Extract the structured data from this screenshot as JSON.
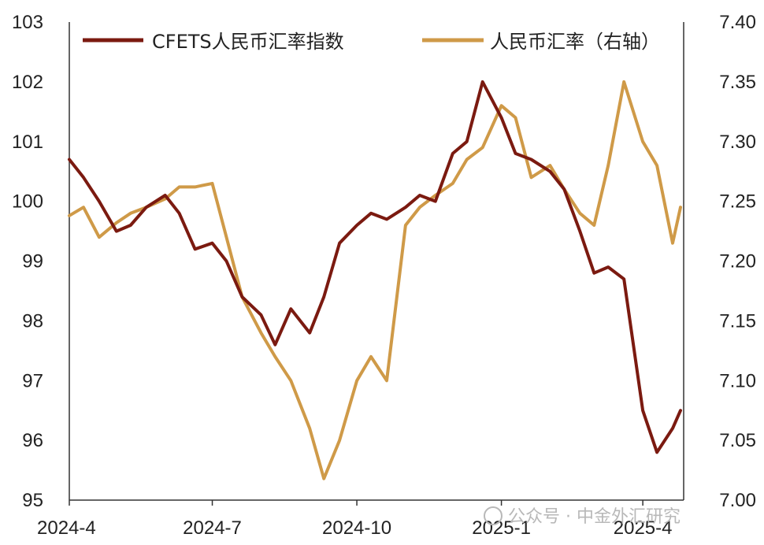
{
  "chart_data": {
    "type": "line",
    "x_ticks": [
      "2024-4",
      "2024-7",
      "2024-10",
      "2025-1",
      "2025-4"
    ],
    "y_left": {
      "ylim": [
        95,
        103
      ],
      "ticks": [
        "95",
        "96",
        "97",
        "98",
        "99",
        "100",
        "101",
        "102",
        "103"
      ]
    },
    "y_right": {
      "ylim": [
        7.0,
        7.4
      ],
      "ticks": [
        "7.00",
        "7.05",
        "7.10",
        "7.15",
        "7.20",
        "7.25",
        "7.30",
        "7.35",
        "7.40"
      ]
    },
    "legend_position": "top",
    "grid": false,
    "series": [
      {
        "name": "CFETS人民币汇率指数",
        "axis": "left",
        "color": "#7b1a10",
        "x": [
          "2024-04-01",
          "2024-04-10",
          "2024-04-20",
          "2024-05-01",
          "2024-05-10",
          "2024-05-20",
          "2024-06-01",
          "2024-06-10",
          "2024-06-20",
          "2024-07-01",
          "2024-07-10",
          "2024-07-20",
          "2024-08-01",
          "2024-08-10",
          "2024-08-20",
          "2024-09-01",
          "2024-09-10",
          "2024-09-20",
          "2024-10-01",
          "2024-10-10",
          "2024-10-20",
          "2024-11-01",
          "2024-11-10",
          "2024-11-20",
          "2024-12-01",
          "2024-12-10",
          "2024-12-20",
          "2025-01-01",
          "2025-01-10",
          "2025-01-20",
          "2025-02-01",
          "2025-02-10",
          "2025-02-20",
          "2025-03-01",
          "2025-03-10",
          "2025-03-20",
          "2025-04-01",
          "2025-04-10",
          "2025-04-20",
          "2025-04-25"
        ],
        "values": [
          100.7,
          100.4,
          100.0,
          99.5,
          99.6,
          99.9,
          100.1,
          99.8,
          99.2,
          99.3,
          99.0,
          98.4,
          98.1,
          97.6,
          98.2,
          97.8,
          98.4,
          99.3,
          99.6,
          99.8,
          99.7,
          99.9,
          100.1,
          100.0,
          100.8,
          101.0,
          102.0,
          101.4,
          100.8,
          100.7,
          100.5,
          100.2,
          99.5,
          98.8,
          98.9,
          98.7,
          96.5,
          95.8,
          96.2,
          96.5
        ]
      },
      {
        "name": "人民币汇率（右轴）",
        "axis": "right",
        "color": "#cf9a48",
        "x": [
          "2024-04-01",
          "2024-04-10",
          "2024-04-20",
          "2024-05-01",
          "2024-05-10",
          "2024-05-20",
          "2024-06-01",
          "2024-06-10",
          "2024-06-20",
          "2024-07-01",
          "2024-07-10",
          "2024-07-20",
          "2024-08-01",
          "2024-08-10",
          "2024-08-20",
          "2024-09-01",
          "2024-09-10",
          "2024-09-20",
          "2024-10-01",
          "2024-10-10",
          "2024-10-20",
          "2024-11-01",
          "2024-11-10",
          "2024-11-20",
          "2024-12-01",
          "2024-12-10",
          "2024-12-20",
          "2025-01-01",
          "2025-01-10",
          "2025-01-20",
          "2025-02-01",
          "2025-02-10",
          "2025-02-20",
          "2025-03-01",
          "2025-03-10",
          "2025-03-20",
          "2025-04-01",
          "2025-04-10",
          "2025-04-20",
          "2025-04-25"
        ],
        "values": [
          7.238,
          7.245,
          7.22,
          7.232,
          7.24,
          7.245,
          7.252,
          7.262,
          7.262,
          7.265,
          7.22,
          7.17,
          7.14,
          7.12,
          7.1,
          7.06,
          7.018,
          7.05,
          7.1,
          7.12,
          7.1,
          7.23,
          7.245,
          7.255,
          7.265,
          7.285,
          7.295,
          7.33,
          7.32,
          7.27,
          7.28,
          7.26,
          7.24,
          7.23,
          7.28,
          7.35,
          7.3,
          7.28,
          7.215,
          7.245
        ]
      }
    ]
  },
  "watermark": "公众号 · 中金外汇研究"
}
